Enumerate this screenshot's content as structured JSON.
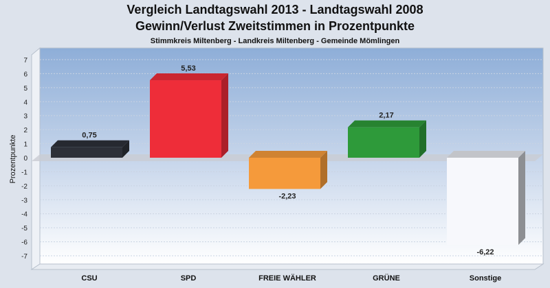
{
  "chart_data": {
    "type": "bar",
    "title": "Vergleich Landtagswahl 2013 - Landtagswahl 2008",
    "subtitle": "Gewinn/Verlust Zweitstimmen in Prozentpunkte",
    "caption": "Stimmkreis Miltenberg - Landkreis Miltenberg - Gemeinde Mömlingen",
    "ylabel": "Prozentpunkte",
    "xlabel": "",
    "ylim": [
      -7,
      7
    ],
    "yticks": [
      7,
      6,
      5,
      4,
      3,
      2,
      1,
      0,
      -1,
      -2,
      -3,
      -4,
      -5,
      -6,
      -7
    ],
    "categories": [
      "CSU",
      "SPD",
      "FREIE WÄHLER",
      "GRÜNE",
      "Sonstige"
    ],
    "values": [
      0.75,
      5.53,
      -2.23,
      2.17,
      -6.22
    ],
    "value_labels": [
      "0,75",
      "5,53",
      "-2,23",
      "2,17",
      "-6,22"
    ],
    "colors": [
      "#2d3038",
      "#ee2d39",
      "#f59a3b",
      "#2e9a3a",
      "#f7f8fc"
    ],
    "grid": true
  }
}
